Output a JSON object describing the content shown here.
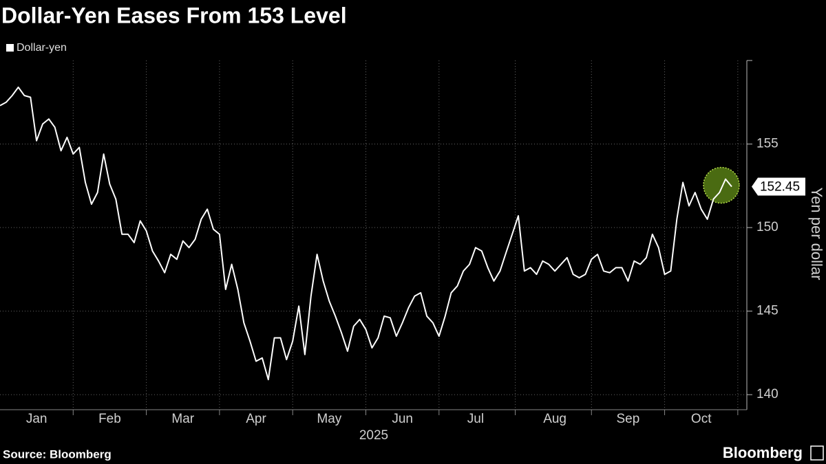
{
  "chart_data": {
    "type": "line",
    "title": "Dollar-Yen Eases From 153 Level",
    "xlabel": "2025",
    "ylabel": "Yen per dollar",
    "source": "Source: Bloomberg",
    "brand": "Bloomberg",
    "categories": [
      null,
      null,
      null,
      null,
      null,
      null,
      "Jan",
      null,
      null,
      null,
      null,
      null,
      null,
      null,
      null,
      null,
      null,
      null,
      "Feb",
      null,
      null,
      null,
      null,
      null,
      null,
      null,
      null,
      null,
      null,
      null,
      "Mar",
      null,
      null,
      null,
      null,
      null,
      null,
      null,
      null,
      null,
      null,
      null,
      "Apr",
      null,
      null,
      null,
      null,
      null,
      null,
      null,
      null,
      null,
      null,
      null,
      "May",
      null,
      null,
      null,
      null,
      null,
      null,
      null,
      null,
      null,
      null,
      null,
      "Jun",
      null,
      null,
      null,
      null,
      null,
      null,
      null,
      null,
      null,
      null,
      null,
      "Jul",
      null,
      null,
      null,
      null,
      null,
      null,
      null,
      null,
      null,
      null,
      null,
      null,
      "Aug",
      null,
      null,
      null,
      null,
      null,
      null,
      null,
      null,
      null,
      null,
      null,
      "Sep",
      null,
      null,
      null,
      null,
      null,
      null,
      null,
      null,
      null,
      null,
      null,
      "Oct",
      null,
      null,
      null,
      null,
      null
    ],
    "series": [
      {
        "name": "Dollar-yen",
        "color": "#ffffff",
        "values": [
          157.3,
          157.5,
          157.9,
          158.4,
          157.9,
          157.8,
          155.2,
          156.2,
          156.5,
          156.0,
          154.6,
          155.4,
          154.4,
          154.8,
          152.7,
          151.4,
          152.1,
          154.4,
          152.6,
          151.7,
          149.6,
          149.6,
          149.1,
          150.4,
          149.8,
          148.6,
          148.0,
          147.3,
          148.4,
          148.1,
          149.2,
          148.8,
          149.3,
          150.5,
          151.1,
          149.9,
          149.6,
          146.3,
          147.8,
          146.3,
          144.3,
          143.2,
          142.0,
          142.2,
          140.9,
          143.4,
          143.4,
          142.1,
          143.2,
          145.3,
          142.4,
          145.9,
          148.4,
          146.8,
          145.6,
          144.7,
          143.7,
          142.6,
          144.1,
          144.5,
          143.9,
          142.8,
          143.4,
          144.7,
          144.6,
          143.5,
          144.3,
          145.2,
          145.9,
          146.1,
          144.7,
          144.3,
          143.5,
          144.7,
          146.1,
          146.5,
          147.4,
          147.8,
          148.8,
          148.6,
          147.6,
          146.8,
          147.4,
          148.5,
          149.6,
          150.7,
          147.4,
          147.6,
          147.2,
          148.0,
          147.8,
          147.4,
          147.8,
          148.2,
          147.2,
          147.0,
          147.2,
          148.1,
          148.4,
          147.4,
          147.3,
          147.6,
          147.6,
          146.8,
          148.0,
          147.8,
          148.2,
          149.6,
          148.8,
          147.2,
          147.4,
          150.5,
          152.7,
          151.3,
          152.1,
          151.1,
          150.5,
          151.7,
          152.1,
          152.9,
          152.45
        ]
      }
    ],
    "ylim": [
      139.1,
      160
    ],
    "yticks": [
      140,
      145,
      150,
      155
    ],
    "grid": true
  }
}
